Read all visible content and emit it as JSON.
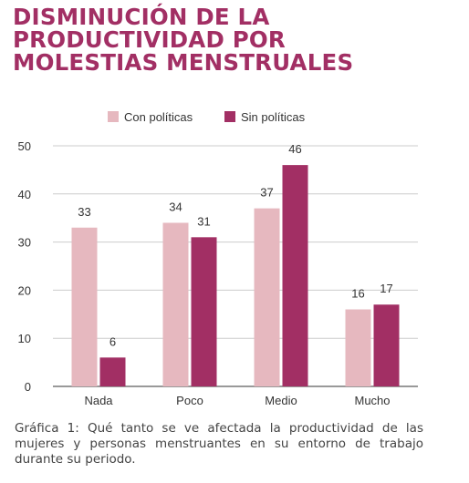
{
  "title": "DISMINUCIÓN DE LA\nPRODUCTIVIDAD POR\nMOLESTIAS MENSTRUALES",
  "caption": "Gráfica 1: Qué tanto se ve  afectada la productividad de las mujeres y personas menstruantes en su entorno de trabajo durante su periodo.",
  "colors": {
    "title": "#a22f64",
    "con_politicas": "#e6b8bf",
    "sin_politicas": "#a22f64",
    "grid": "#cccccc",
    "text": "#333333"
  },
  "chart_data": {
    "type": "bar",
    "categories": [
      "Nada",
      "Poco",
      "Medio",
      "Mucho"
    ],
    "series": [
      {
        "name": "Con políticas",
        "values": [
          33,
          34,
          37,
          16
        ]
      },
      {
        "name": "Sin políticas",
        "values": [
          6,
          31,
          46,
          17
        ]
      }
    ],
    "ylim": [
      0,
      50
    ],
    "yticks": [
      0,
      10,
      20,
      30,
      40,
      50
    ],
    "grid": true,
    "legend": "top-center",
    "data_labels": true
  }
}
